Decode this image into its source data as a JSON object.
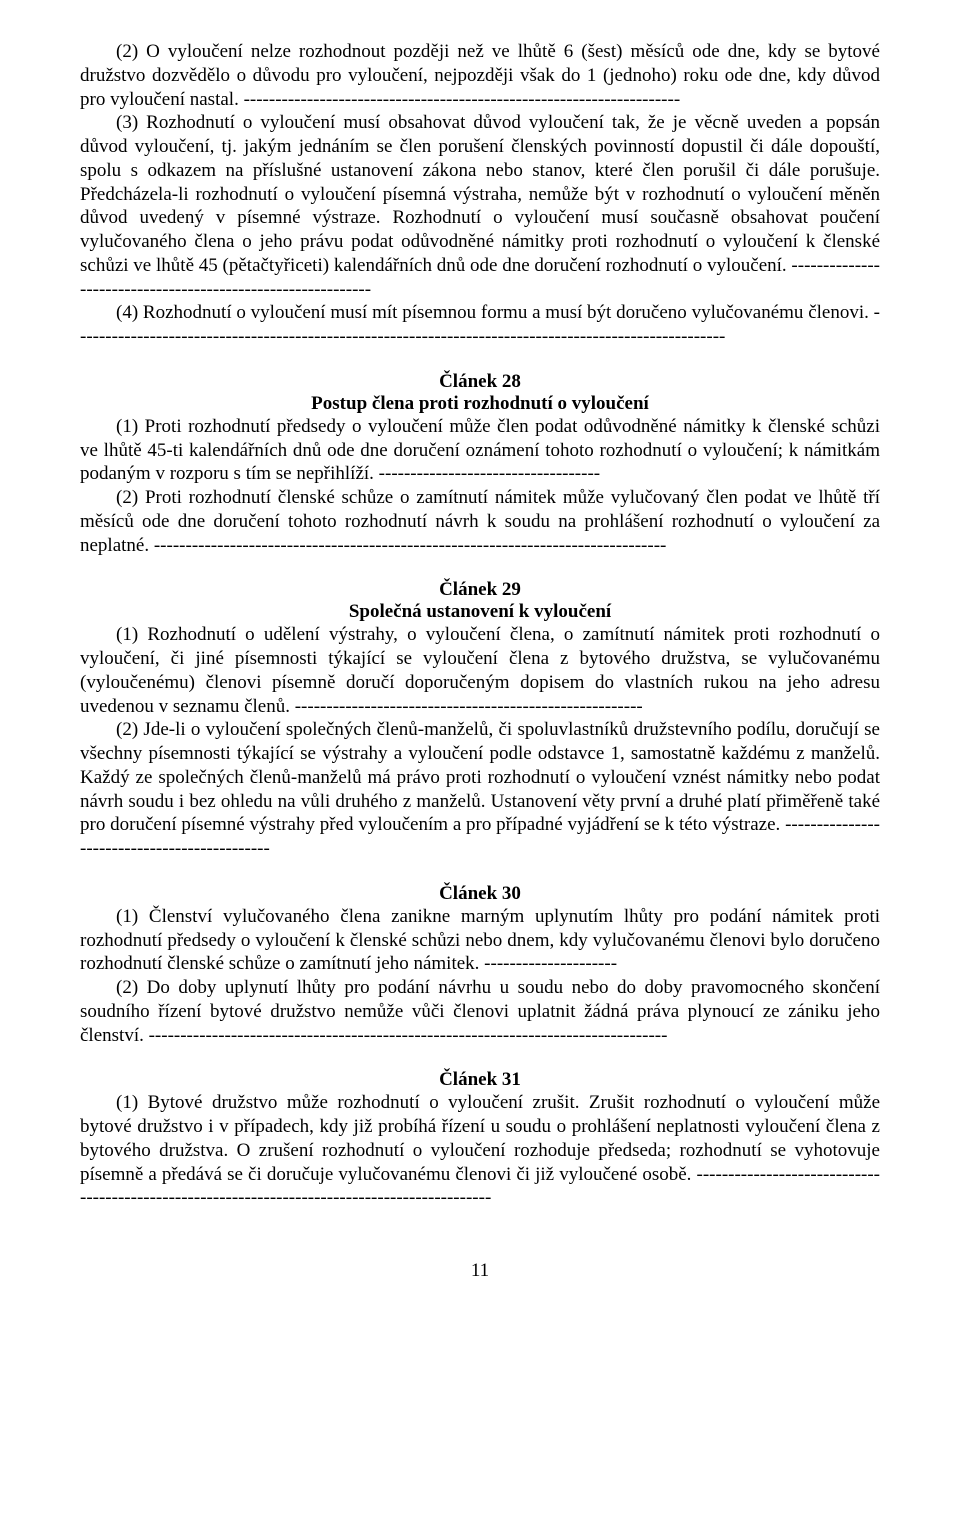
{
  "paragraphs": {
    "p1": "(2) O vyloučení nelze rozhodnout později než ve lhůtě 6 (šest) měsíců ode dne, kdy se bytové družstvo dozvědělo o důvodu pro vyloučení, nejpozději však do 1 (jednoho) roku ode dne, kdy důvod pro vyloučení nastal. ---------------------------------------------------------------------",
    "p2": "(3) Rozhodnutí o vyloučení musí obsahovat důvod vyloučení tak, že je věcně uveden a popsán důvod vyloučení, tj. jakým jednáním se člen porušení členských povinností dopustil či dále dopouští, spolu s odkazem na příslušné ustanovení zákona nebo stanov, které člen porušil či dále porušuje. Předcházela-li rozhodnutí o vyloučení písemná výstraha, nemůže být v rozhodnutí o vyloučení měněn důvod uvedený v písemné výstraze. Rozhodnutí o vyloučení musí současně obsahovat poučení vylučovaného člena o jeho právu podat odůvodněné námitky proti rozhodnutí o vyloučení k členské schůzi ve lhůtě 45 (pětačtyřiceti) kalendářních dnů ode dne doručení rozhodnutí o vyloučení. ------------------------------------------------------------",
    "p3": "(4) Rozhodnutí o vyloučení musí mít písemnou formu a musí být doručeno vylučovanému členovi. -------------------------------------------------------------------------------------------------------",
    "a28_title": "Článek 28",
    "a28_sub": "Postup člena proti rozhodnutí o vyloučení",
    "p4": "(1) Proti rozhodnutí předsedy o vyloučení může člen podat odůvodněné námitky k členské schůzi ve lhůtě 45-ti kalendářních dnů ode dne doručení oznámení tohoto rozhodnutí o vyloučení; k námitkám podaným v rozporu s tím se nepřihlíží. -----------------------------------",
    "p5": "(2) Proti rozhodnutí členské schůze o zamítnutí námitek může vylučovaný člen podat ve lhůtě tří měsíců ode dne doručení tohoto rozhodnutí návrh k soudu na prohlášení rozhodnutí o vyloučení za neplatné. ---------------------------------------------------------------------------------",
    "a29_title": "Článek 29",
    "a29_sub": "Společná ustanovení k vyloučení",
    "p6": "(1) Rozhodnutí o udělení výstrahy, o vyloučení člena, o zamítnutí námitek proti rozhodnutí o vyloučení, či jiné písemnosti týkající se vyloučení člena z bytového družstva, se vylučovanému (vyloučenému) členovi písemně doručí doporučeným dopisem do vlastních rukou na jeho adresu uvedenou v seznamu členů. -------------------------------------------------------",
    "p7": "(2) Jde-li o vyloučení společných členů-manželů, či spoluvlastníků družstevního podílu, doručují se všechny písemnosti týkající se výstrahy a vyloučení podle odstavce 1, samostatně každému z manželů. Každý ze společných členů-manželů má právo proti rozhodnutí o vyloučení vznést námitky nebo podat návrh soudu i bez ohledu na vůli druhého z manželů. Ustanovení věty první a druhé platí přiměřeně také pro doručení písemné výstrahy před vyloučením a pro případné vyjádření se k této výstraze. ---------------------------------------------",
    "a30_title": "Článek 30",
    "p8": "(1) Členství vylučovaného člena zanikne marným uplynutím lhůty pro podání námitek proti rozhodnutí předsedy o vyloučení k členské schůzi nebo dnem, kdy vylučovanému členovi bylo doručeno rozhodnutí členské schůze o zamítnutí jeho námitek. ---------------------",
    "p9": "(2) Do doby uplynutí lhůty pro podání návrhu u soudu nebo do doby pravomocného skončení soudního řízení bytové družstvo nemůže vůči členovi uplatnit žádná práva plynoucí ze zániku jeho členství. ----------------------------------------------------------------------------------",
    "a31_title": "Článek 31",
    "p10": "(1) Bytové družstvo může rozhodnutí o vyloučení zrušit. Zrušit rozhodnutí o vyloučení může bytové družstvo i v případech, kdy již probíhá řízení u soudu o prohlášení neplatnosti vyloučení člena z bytového družstva. O zrušení rozhodnutí o vyloučení rozhoduje předseda; rozhodnutí se vyhotovuje písemně a předává se či doručuje vylučovanému členovi či již vyloučené osobě. ----------------------------------------------------------------------------------------------"
  },
  "pagenum": "11"
}
